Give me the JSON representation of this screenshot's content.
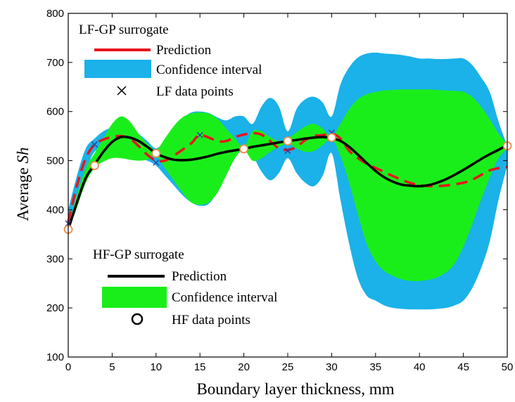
{
  "chart_data": {
    "type": "line",
    "xlabel": "Boundary layer thickness, mm",
    "ylabel_prefix": "Average ",
    "ylabel_italic": "Sh",
    "xlim": [
      0,
      50
    ],
    "ylim": [
      100,
      800
    ],
    "xticks": [
      "0",
      "5",
      "10",
      "15",
      "20",
      "25",
      "30",
      "35",
      "40",
      "45",
      "50"
    ],
    "yticks": [
      "100",
      "200",
      "300",
      "400",
      "500",
      "600",
      "700",
      "800"
    ],
    "grid": false,
    "colors": {
      "lf_prediction": "#e8141c",
      "lf_ci": "#1ab2e8",
      "lf_points": "#2a3f9e",
      "hf_prediction": "#000000",
      "hf_ci": "#1aee1a",
      "hf_points": "#f08a4b"
    },
    "lf_legend": {
      "title": "LF-GP surrogate",
      "prediction": "Prediction",
      "ci": "Confidence interval",
      "points": "LF data points"
    },
    "hf_legend": {
      "title": "HF-GP surrogate",
      "prediction": "Prediction",
      "ci": "Confidence interval",
      "points": "HF data points"
    },
    "lf_prediction": {
      "x": [
        0,
        1,
        2,
        3,
        4,
        5,
        6,
        7,
        8,
        9,
        10,
        11,
        12,
        14,
        15,
        17,
        18,
        19,
        20,
        21,
        22,
        23,
        24,
        25,
        26,
        27,
        28,
        29,
        30,
        31,
        32,
        33,
        35,
        40,
        45,
        48,
        50
      ],
      "y": [
        375,
        450,
        505,
        533,
        543,
        548,
        550,
        545,
        530,
        512,
        500,
        500,
        510,
        535,
        552,
        540,
        540,
        548,
        553,
        556,
        553,
        540,
        525,
        522,
        528,
        542,
        550,
        552,
        555,
        545,
        520,
        505,
        485,
        450,
        455,
        480,
        487
      ]
    },
    "lf_ci": {
      "x": [
        0,
        1,
        2,
        3,
        4,
        5,
        6,
        7,
        8,
        9,
        10,
        11,
        12,
        13,
        14,
        15,
        16,
        17,
        18,
        19,
        20,
        21,
        22,
        23,
        24,
        25,
        26,
        27,
        28,
        29,
        30,
        31,
        32,
        33,
        34,
        35,
        36,
        37,
        38,
        39,
        40,
        41,
        42,
        43,
        44,
        45,
        46,
        47,
        48,
        49,
        50
      ],
      "upper": [
        400,
        470,
        525,
        545,
        560,
        568,
        575,
        570,
        555,
        540,
        525,
        540,
        560,
        585,
        598,
        600,
        597,
        588,
        582,
        590,
        590,
        575,
        610,
        628,
        610,
        560,
        605,
        625,
        630,
        618,
        590,
        655,
        690,
        710,
        718,
        720,
        718,
        717,
        715,
        712,
        708,
        708,
        707,
        707,
        708,
        708,
        695,
        670,
        640,
        580,
        530
      ],
      "lower": [
        360,
        420,
        480,
        518,
        525,
        530,
        520,
        510,
        505,
        500,
        490,
        470,
        450,
        430,
        415,
        408,
        412,
        438,
        480,
        515,
        525,
        510,
        478,
        460,
        475,
        505,
        475,
        455,
        448,
        470,
        515,
        420,
        330,
        260,
        225,
        215,
        205,
        200,
        198,
        197,
        197,
        197,
        198,
        200,
        205,
        215,
        240,
        280,
        335,
        420,
        490
      ]
    },
    "lf_points": {
      "x": [
        0,
        3,
        10,
        15,
        20,
        25,
        30,
        50
      ],
      "y": [
        372,
        533,
        496,
        552,
        525,
        520,
        557,
        530
      ]
    },
    "hf_prediction": {
      "x": [
        0,
        1,
        2,
        3,
        4,
        5,
        6,
        7,
        8,
        9,
        10,
        11,
        12,
        13,
        14,
        15,
        16,
        17,
        18,
        19,
        20,
        21,
        22,
        23,
        24,
        25,
        26,
        27,
        28,
        29,
        30,
        31,
        32,
        33,
        34,
        35,
        36,
        37,
        38,
        39,
        40,
        41,
        42,
        43,
        44,
        45,
        46,
        47,
        48,
        49,
        50
      ],
      "y": [
        360,
        415,
        465,
        492,
        518,
        538,
        548,
        547,
        540,
        528,
        515,
        507,
        502,
        501,
        502,
        505,
        509,
        514,
        518,
        521,
        524,
        528,
        531,
        534,
        537,
        540,
        542,
        545,
        547,
        548,
        546,
        540,
        528,
        512,
        495,
        479,
        466,
        457,
        451,
        449,
        448,
        450,
        455,
        462,
        471,
        481,
        492,
        503,
        513,
        522,
        532
      ]
    },
    "hf_ci": {
      "x": [
        0,
        1,
        2,
        3,
        4,
        5,
        6,
        7,
        8,
        9,
        10,
        11,
        12,
        13,
        14,
        15,
        16,
        17,
        18,
        19,
        20,
        21,
        22,
        23,
        24,
        25,
        26,
        27,
        28,
        29,
        30,
        31,
        32,
        33,
        34,
        35,
        36,
        37,
        38,
        39,
        40,
        41,
        42,
        43,
        44,
        45,
        46,
        47,
        48,
        49,
        50
      ],
      "upper": [
        365,
        430,
        485,
        515,
        545,
        575,
        590,
        580,
        555,
        535,
        522,
        545,
        570,
        588,
        596,
        598,
        596,
        585,
        565,
        545,
        528,
        560,
        560,
        548,
        540,
        545,
        558,
        570,
        575,
        565,
        548,
        575,
        605,
        625,
        635,
        640,
        643,
        644,
        645,
        645,
        645,
        645,
        644,
        643,
        642,
        640,
        630,
        610,
        585,
        555,
        535
      ],
      "lower": [
        355,
        405,
        455,
        485,
        498,
        505,
        505,
        502,
        500,
        502,
        510,
        485,
        460,
        435,
        415,
        410,
        415,
        435,
        470,
        505,
        522,
        500,
        505,
        518,
        528,
        535,
        525,
        518,
        520,
        532,
        544,
        510,
        455,
        390,
        330,
        295,
        275,
        265,
        258,
        255,
        255,
        257,
        262,
        272,
        290,
        325,
        370,
        420,
        465,
        505,
        525
      ]
    },
    "hf_points": {
      "x": [
        0,
        3,
        10,
        20,
        25,
        30,
        50
      ],
      "y": [
        360,
        490,
        515,
        524,
        540,
        547,
        530
      ]
    }
  }
}
